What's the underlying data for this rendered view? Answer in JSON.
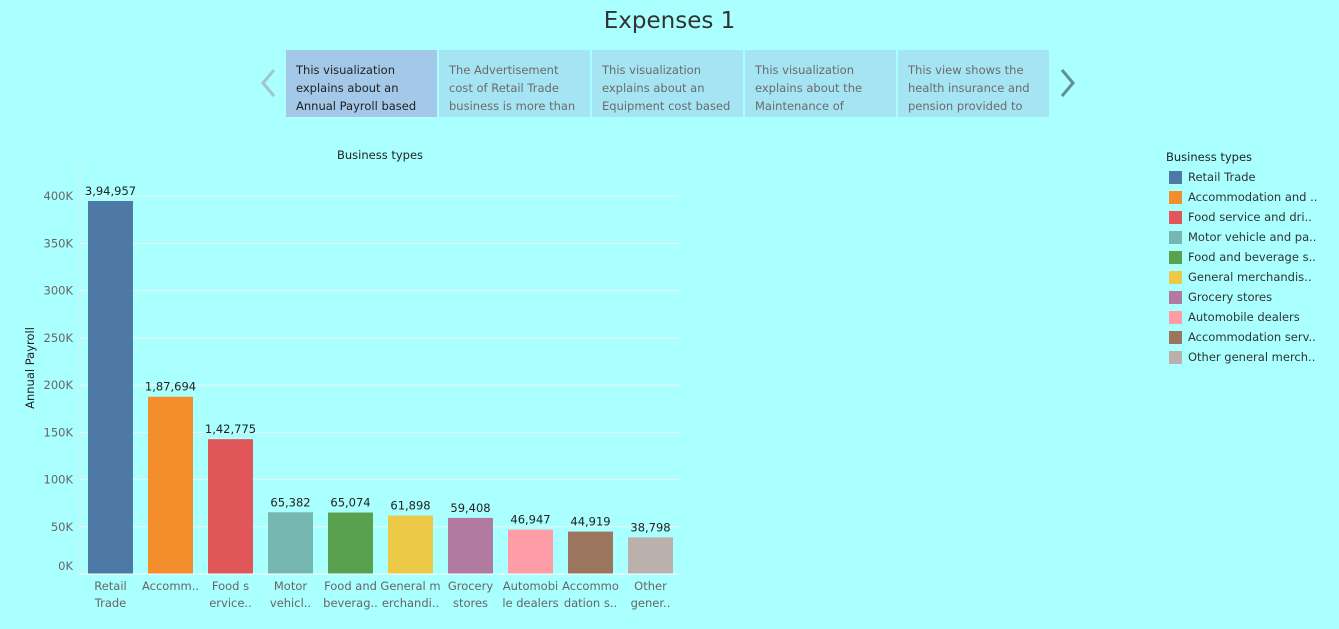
{
  "story": {
    "title": "Expenses 1",
    "points": [
      {
        "text": "This visualization explains about an Annual Payroll based",
        "active": true
      },
      {
        "text": "The Advertisement cost of Retail Trade business is more than",
        "active": false
      },
      {
        "text": "This visualization explains about an Equipment cost based",
        "active": false
      },
      {
        "text": "This visualization explains about the Maintenance of",
        "active": false
      },
      {
        "text": "This view shows the health insurance and pension provided to",
        "active": false
      }
    ],
    "prev_icon": "chevron-left-icon",
    "next_icon": "chevron-right-icon"
  },
  "chart_header": "Business types",
  "chart_data": {
    "type": "bar",
    "title": "Business types",
    "xlabel": "",
    "ylabel": "Annual Payroll",
    "ylim": [
      0,
      420000
    ],
    "yticks": [
      {
        "value": 0,
        "label": "0K"
      },
      {
        "value": 50000,
        "label": "50K"
      },
      {
        "value": 100000,
        "label": "100K"
      },
      {
        "value": 150000,
        "label": "150K"
      },
      {
        "value": 200000,
        "label": "200K"
      },
      {
        "value": 250000,
        "label": "250K"
      },
      {
        "value": 300000,
        "label": "300K"
      },
      {
        "value": 350000,
        "label": "350K"
      },
      {
        "value": 400000,
        "label": "400K"
      }
    ],
    "grid": true,
    "legend_position": "right",
    "categories": [
      [
        "Retail",
        "Trade"
      ],
      [
        "Accomm.."
      ],
      [
        "Food s",
        "ervice.."
      ],
      [
        "Motor",
        "vehicl.."
      ],
      [
        "Food and",
        "beverag.."
      ],
      [
        "General m",
        "erchandi.."
      ],
      [
        "Grocery",
        "stores"
      ],
      [
        "Automobi",
        "le dealers"
      ],
      [
        "Accommo",
        "dation s.."
      ],
      [
        "Other",
        "gener.."
      ]
    ],
    "values": [
      394957,
      187694,
      142775,
      65382,
      65074,
      61898,
      59408,
      46947,
      44919,
      38798
    ],
    "data_labels": [
      "3,94,957",
      "1,87,694",
      "1,42,775",
      "65,382",
      "65,074",
      "61,898",
      "59,408",
      "46,947",
      "44,919",
      "38,798"
    ],
    "colors": [
      "#4e79a7",
      "#f28e2b",
      "#e15759",
      "#76b7b2",
      "#59a14f",
      "#edc948",
      "#b07aa1",
      "#ff9da7",
      "#9c755f",
      "#bab0ac"
    ]
  },
  "legend": {
    "title": "Business types",
    "items": [
      {
        "label": "Retail Trade",
        "color": "#4e79a7"
      },
      {
        "label": "Accommodation and ..",
        "color": "#f28e2b"
      },
      {
        "label": "Food service and dri..",
        "color": "#e15759"
      },
      {
        "label": "Motor vehicle and pa..",
        "color": "#76b7b2"
      },
      {
        "label": "Food and beverage s..",
        "color": "#59a14f"
      },
      {
        "label": "General merchandis..",
        "color": "#edc948"
      },
      {
        "label": "Grocery stores",
        "color": "#b07aa1"
      },
      {
        "label": "Automobile dealers",
        "color": "#ff9da7"
      },
      {
        "label": "Accommodation serv..",
        "color": "#9c755f"
      },
      {
        "label": "Other general merch..",
        "color": "#bab0ac"
      }
    ]
  }
}
